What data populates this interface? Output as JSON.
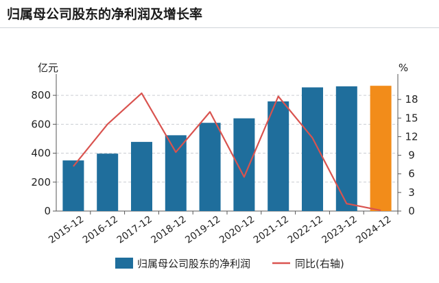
{
  "title": "归属母公司股东的净利润及增长率",
  "chart_data": {
    "type": "bar",
    "categories": [
      "2015-12",
      "2016-12",
      "2017-12",
      "2018-12",
      "2019-12",
      "2020-12",
      "2021-12",
      "2022-12",
      "2023-12",
      "2024-12"
    ],
    "series": [
      {
        "name": "归属母公司股东的净利润",
        "type": "bar",
        "axis": "left",
        "color": "#1f6e9c",
        "values": [
          350,
          397,
          478,
          524,
          610,
          641,
          758,
          855,
          862,
          866
        ],
        "highlight_index": 9,
        "highlight_color": "#f28c1a"
      },
      {
        "name": "同比(右轴)",
        "type": "line",
        "axis": "right",
        "color": "#d9534f",
        "values": [
          7.2,
          14.0,
          19.0,
          9.5,
          16.0,
          5.5,
          18.5,
          11.8,
          1.2,
          0.1
        ]
      }
    ],
    "left_axis": {
      "unit_label": "亿元",
      "min": 0,
      "max": 900,
      "ticks": [
        0,
        200,
        400,
        600,
        800
      ]
    },
    "right_axis": {
      "unit_label": "%",
      "min": 0,
      "max": 21,
      "ticks": [
        0,
        3,
        6,
        9,
        12,
        15,
        18
      ]
    },
    "grid": true,
    "legend_position": "bottom"
  }
}
